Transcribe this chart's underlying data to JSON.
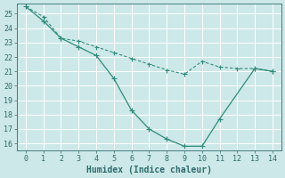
{
  "line1_x": [
    0,
    1,
    2,
    3,
    4,
    5,
    6,
    7,
    8,
    9,
    10,
    11,
    13,
    14
  ],
  "line1_y": [
    25.5,
    24.5,
    23.3,
    22.7,
    22.1,
    20.5,
    18.3,
    17.0,
    16.3,
    15.8,
    15.8,
    17.7,
    21.2,
    21.0
  ],
  "line2_x": [
    0,
    1,
    2,
    3,
    4,
    5,
    6,
    7,
    8,
    9,
    10,
    11,
    12,
    13,
    14
  ],
  "line2_y": [
    25.5,
    24.8,
    23.3,
    23.1,
    22.7,
    22.3,
    21.9,
    21.5,
    21.1,
    20.8,
    21.7,
    21.3,
    21.2,
    21.2,
    21.0
  ],
  "line_color": "#2e8b7a",
  "bg_color": "#cde8e8",
  "grid_color": "#b8d8d8",
  "xlabel": "Humidex (Indice chaleur)",
  "xlim": [
    -0.5,
    14.5
  ],
  "ylim": [
    15.5,
    25.7
  ],
  "yticks": [
    16,
    17,
    18,
    19,
    20,
    21,
    22,
    23,
    24,
    25
  ],
  "xticks": [
    0,
    1,
    2,
    3,
    4,
    5,
    6,
    7,
    8,
    9,
    10,
    11,
    12,
    13,
    14
  ],
  "font_color": "#2e6b6b",
  "xlabel_fontsize": 7.0,
  "tick_fontsize": 6.0,
  "marker_size1": 2.5,
  "marker_size2": 2.0,
  "lw1": 0.9,
  "lw2": 0.8
}
